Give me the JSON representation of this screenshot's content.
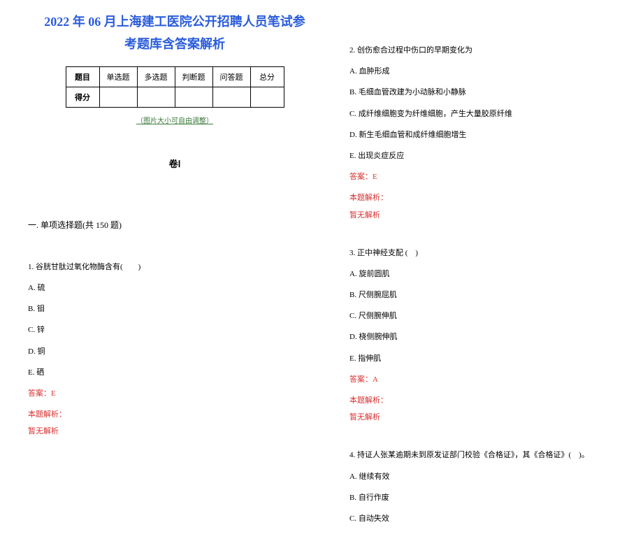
{
  "title_line1": "2022 年 06 月上海建工医院公开招聘人员笔试参",
  "title_line2": "考题库含答案解析",
  "table": {
    "headers": [
      "题目",
      "单选题",
      "多选题",
      "判断题",
      "问答题",
      "总分"
    ],
    "row_label": "得分"
  },
  "img_note": "（图片大小可自由调整）",
  "volume_label": "卷Ⅰ",
  "section_header": "一. 单项选择题(共 150 题)",
  "q1": {
    "text": "1. 谷胱甘肽过氧化物酶含有(　　)",
    "options": [
      "A. 硫",
      "B. 钼",
      "C. 锌",
      "D. 铜",
      "E. 硒"
    ],
    "answer": "答案：E",
    "analysis_label": "本题解析：",
    "analysis_text": "暂无解析"
  },
  "q2": {
    "text": "2. 创伤愈合过程中伤口的早期变化为",
    "options": [
      "A. 血肿形成",
      "B. 毛细血管改建为小动脉和小静脉",
      "C. 成纤维细胞变为纤维细胞，产生大量胶原纤维",
      "D. 新生毛细血管和成纤维细胞增生",
      "E. 出现炎症反应"
    ],
    "answer": "答案：E",
    "analysis_label": "本题解析：",
    "analysis_text": "暂无解析"
  },
  "q3": {
    "text": "3. 正中神经支配 (　)",
    "options": [
      "A. 旋前圆肌",
      "B. 尺侧腕屈肌",
      "C. 尺侧腕伸肌",
      "D. 桡侧腕伸肌",
      "E. 指伸肌"
    ],
    "answer": "答案：A",
    "analysis_label": "本题解析：",
    "analysis_text": "暂无解析"
  },
  "q4": {
    "text": "4. 持证人张某逾期未到原发证部门校验《合格证》，其《合格证》(　)。",
    "options": [
      "A. 继续有效",
      "B. 自行作废",
      "C. 自动失效"
    ]
  },
  "colors": {
    "title": "#2a5cdb",
    "answer": "#d83030",
    "note": "#3a7a3a",
    "text": "#000000"
  }
}
